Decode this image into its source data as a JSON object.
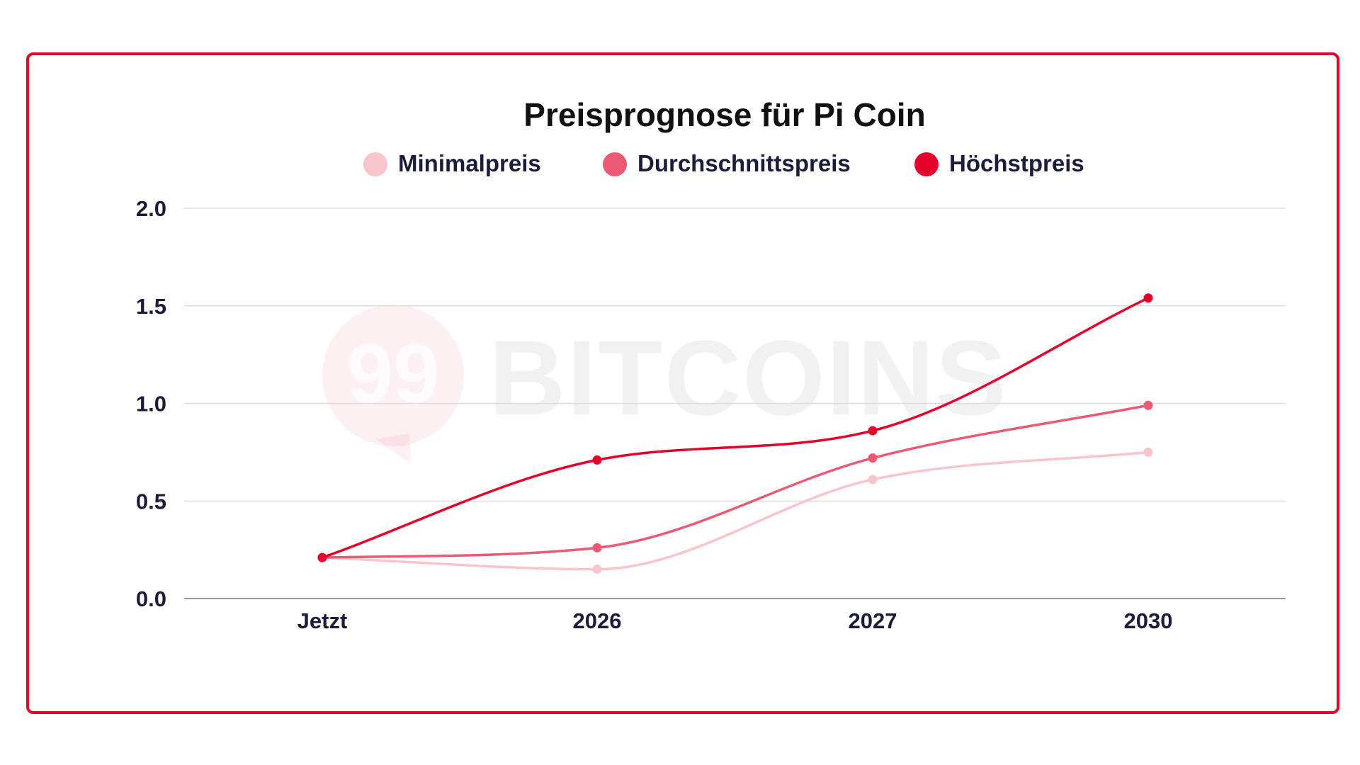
{
  "chart_data": {
    "type": "line",
    "title": "Preisprognose für Pi Coin",
    "categories": [
      "Jetzt",
      "2026",
      "2027",
      "2030"
    ],
    "ylim": [
      0,
      2.0
    ],
    "yticks": [
      "0.0",
      "0.5",
      "1.0",
      "1.5",
      "2.0"
    ],
    "grid": true,
    "legend_position": "top",
    "series": [
      {
        "name": "Minimalpreis",
        "values": [
          0.21,
          0.15,
          0.61,
          0.75
        ],
        "color": "#f8c5cd"
      },
      {
        "name": "Durchschnittspreis",
        "values": [
          0.21,
          0.26,
          0.72,
          0.99
        ],
        "color": "#eb5a72"
      },
      {
        "name": "Höchstpreis",
        "values": [
          0.21,
          0.71,
          0.86,
          1.54
        ],
        "color": "#e4002b"
      }
    ]
  },
  "watermark": {
    "badge": "99",
    "text": "BITCOINS"
  },
  "colors": {
    "frame": "#e4002b",
    "text": "#1b1b3a",
    "grid": "#dddddd",
    "axis": "#999999"
  }
}
